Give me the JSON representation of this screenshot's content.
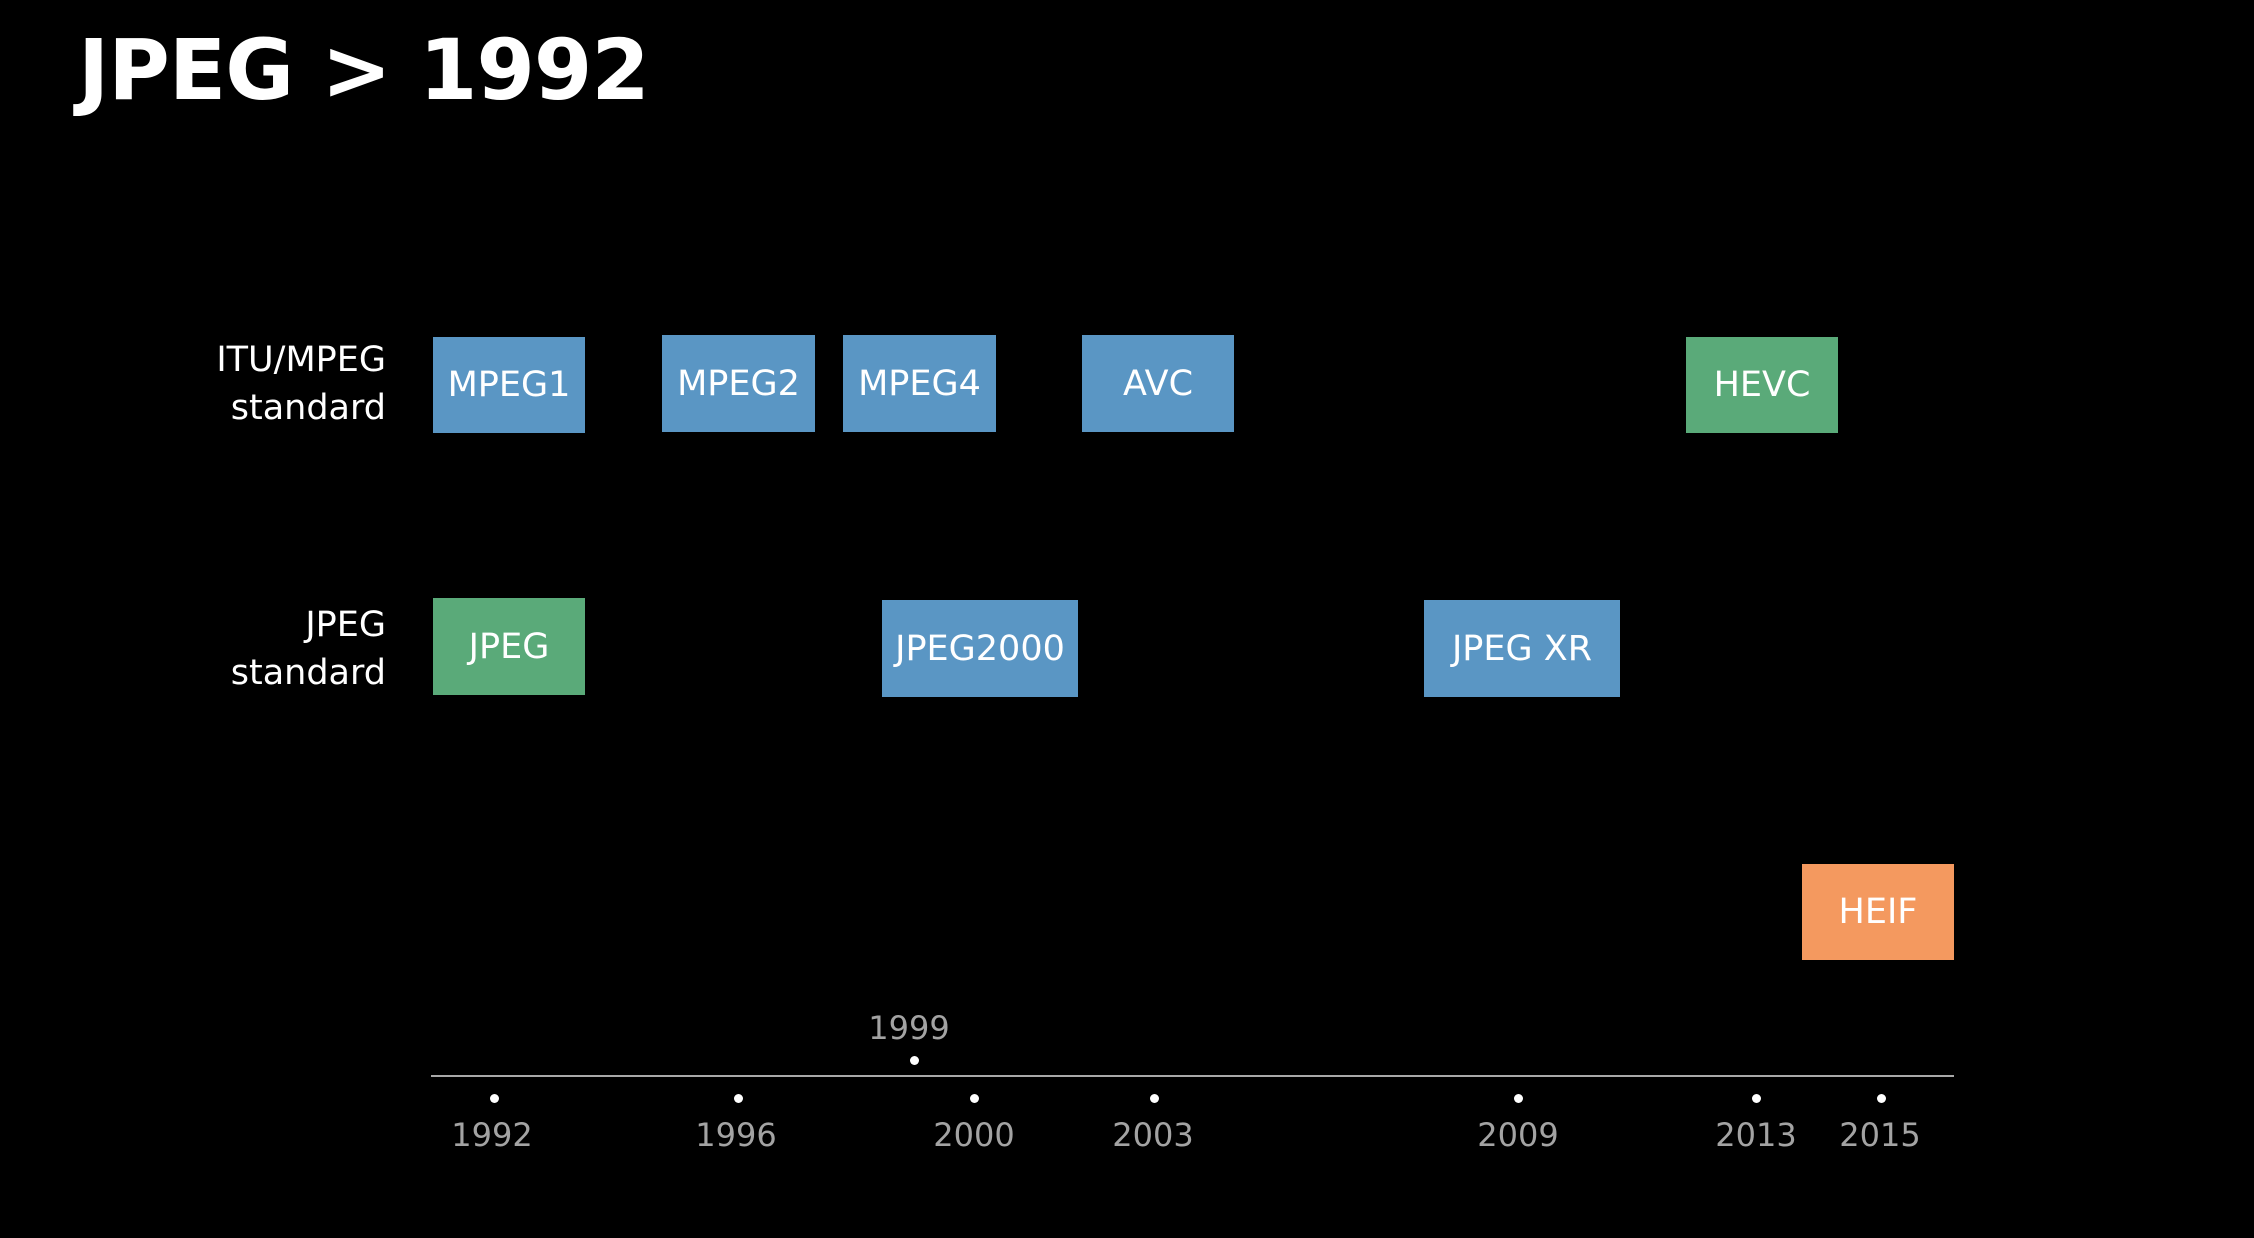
{
  "title": "JPEG > 1992",
  "rows": [
    {
      "label_line1": "ITU/MPEG",
      "label_line2": "standard"
    },
    {
      "label_line1": "JPEG",
      "label_line2": "standard"
    }
  ],
  "boxes": {
    "mpeg1": "MPEG1",
    "mpeg2": "MPEG2",
    "mpeg4": "MPEG4",
    "avc": "AVC",
    "hevc": "HEVC",
    "jpeg": "JPEG",
    "jpeg2000": "JPEG2000",
    "jpegxr": "JPEG XR",
    "heif": "HEIF"
  },
  "colors": {
    "blue": "#5a96c4",
    "green": "#5aaa79",
    "orange": "#f4995f",
    "background": "#000000"
  },
  "timeline": {
    "years_below": [
      "1992",
      "1996",
      "2000",
      "2003",
      "2009",
      "2013",
      "2015"
    ],
    "year_above": "1999"
  }
}
